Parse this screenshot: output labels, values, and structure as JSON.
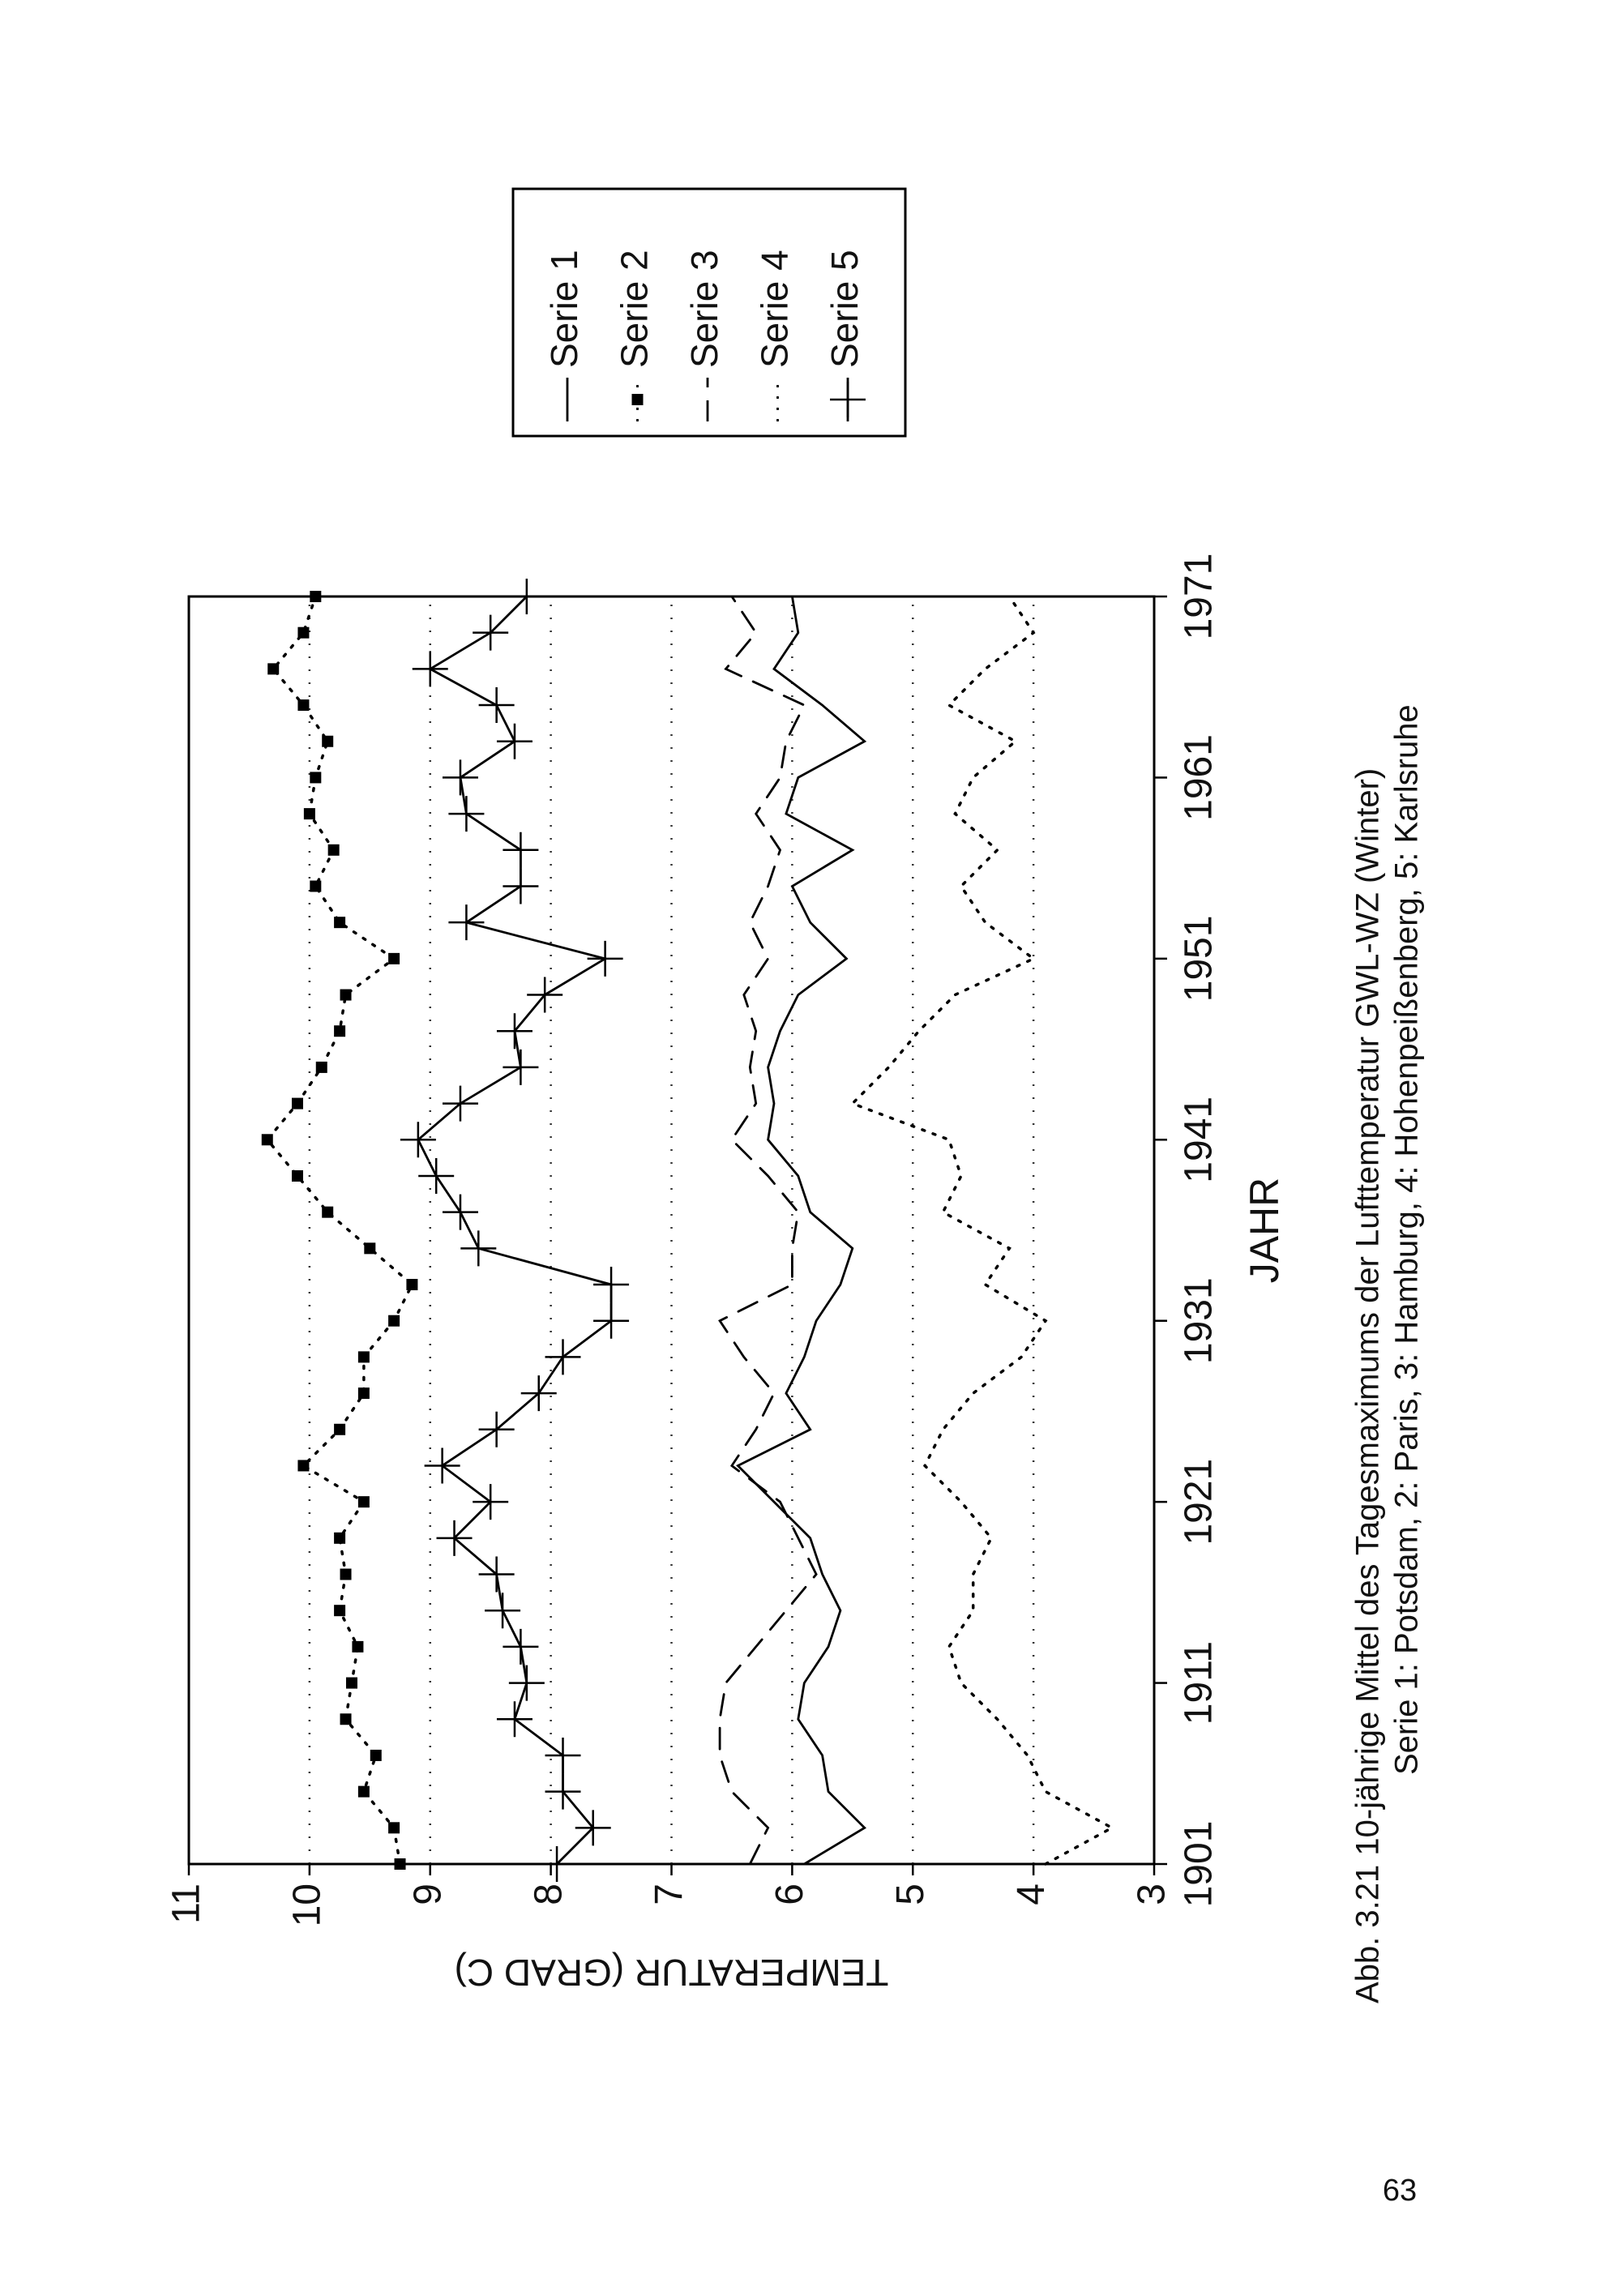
{
  "chart_data": {
    "type": "line",
    "x_label": "JAHR",
    "y_label": "TEMPERATUR (GRAD C)",
    "x": [
      1901,
      1903,
      1905,
      1907,
      1909,
      1911,
      1913,
      1915,
      1917,
      1919,
      1921,
      1923,
      1925,
      1927,
      1929,
      1931,
      1933,
      1935,
      1937,
      1939,
      1941,
      1943,
      1945,
      1947,
      1949,
      1951,
      1953,
      1955,
      1957,
      1959,
      1961,
      1963,
      1965,
      1967,
      1969,
      1971
    ],
    "xlim": [
      1901,
      1971
    ],
    "xticks": [
      1901,
      1911,
      1921,
      1931,
      1941,
      1951,
      1961,
      1971
    ],
    "ylim": [
      3,
      11
    ],
    "yticks": [
      3,
      4,
      5,
      6,
      7,
      8,
      9,
      10,
      11
    ],
    "grid": true,
    "series": [
      {
        "name": "Serie 1",
        "color": "#000000",
        "line": "solid",
        "marker": "none",
        "values": [
          5.9,
          5.4,
          5.7,
          5.75,
          5.95,
          5.9,
          5.7,
          5.6,
          5.75,
          5.85,
          6.15,
          6.45,
          5.85,
          6.05,
          5.9,
          5.8,
          5.6,
          5.5,
          5.85,
          5.95,
          6.2,
          6.15,
          6.2,
          6.1,
          5.95,
          5.55,
          5.85,
          6.0,
          5.5,
          6.05,
          5.95,
          5.4,
          5.75,
          6.15,
          5.95,
          6.0
        ]
      },
      {
        "name": "Serie 2",
        "color": "#000000",
        "line": "dotted",
        "marker": "square",
        "values": [
          9.25,
          9.3,
          9.55,
          9.45,
          9.7,
          9.65,
          9.6,
          9.75,
          9.7,
          9.75,
          9.55,
          10.05,
          9.75,
          9.55,
          9.55,
          9.3,
          9.15,
          9.5,
          9.85,
          10.1,
          10.35,
          10.1,
          9.9,
          9.75,
          9.7,
          9.3,
          9.75,
          9.95,
          9.8,
          10.0,
          9.95,
          9.85,
          10.05,
          10.3,
          10.05,
          9.95
        ]
      },
      {
        "name": "Serie 3",
        "color": "#000000",
        "line": "dashed",
        "marker": "none",
        "values": [
          6.35,
          6.2,
          6.5,
          6.6,
          6.6,
          6.55,
          6.3,
          6.05,
          5.8,
          5.95,
          6.1,
          6.5,
          6.3,
          6.15,
          6.4,
          6.6,
          6.0,
          6.0,
          5.95,
          6.2,
          6.5,
          6.3,
          6.35,
          6.3,
          6.4,
          6.2,
          6.35,
          6.2,
          6.1,
          6.3,
          6.1,
          6.05,
          5.9,
          6.55,
          6.3,
          6.5
        ]
      },
      {
        "name": "Serie 4",
        "color": "#000000",
        "line": "dotted",
        "marker": "none",
        "values": [
          3.9,
          3.35,
          3.9,
          4.05,
          4.3,
          4.6,
          4.7,
          4.5,
          4.5,
          4.35,
          4.6,
          4.9,
          4.75,
          4.5,
          4.1,
          3.9,
          4.4,
          4.2,
          4.75,
          4.6,
          4.7,
          5.5,
          5.2,
          4.95,
          4.65,
          4.0,
          4.4,
          4.6,
          4.3,
          4.65,
          4.5,
          4.15,
          4.7,
          4.4,
          4.0,
          4.2
        ]
      },
      {
        "name": "Serie 5",
        "color": "#000000",
        "line": "solid",
        "marker": "plus",
        "values": [
          7.95,
          7.65,
          7.9,
          7.9,
          8.3,
          8.2,
          8.25,
          8.4,
          8.45,
          8.8,
          8.5,
          8.9,
          8.45,
          8.1,
          7.9,
          7.5,
          7.5,
          8.6,
          8.75,
          8.95,
          9.1,
          8.75,
          8.25,
          8.3,
          8.05,
          7.55,
          8.7,
          8.25,
          8.25,
          8.7,
          8.75,
          8.3,
          8.45,
          9.0,
          8.5,
          8.2
        ]
      }
    ]
  },
  "caption": [
    "Abb. 3.21 10-jährige Mittel des Tagesmaximums der Lufttemperatur GWL-WZ (Winter)",
    "Serie 1: Potsdam, 2: Paris, 3: Hamburg, 4: Hohenpeißenberg, 5: Karlsruhe"
  ],
  "page_number": "63"
}
